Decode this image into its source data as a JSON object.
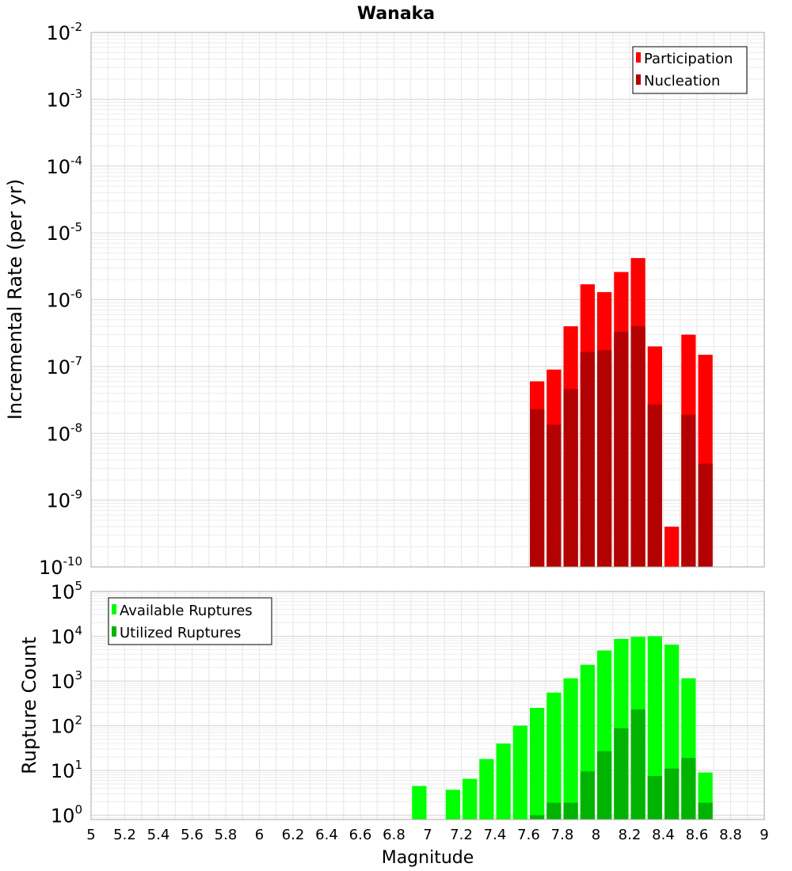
{
  "chart_data": [
    {
      "type": "bar",
      "title": "Wanaka",
      "ylabel": "Incremental Rate (per yr)",
      "xlabel": "",
      "xlim": [
        5,
        9
      ],
      "yscale": "log",
      "ylim": [
        1e-10,
        0.01
      ],
      "y_ticks": [
        {
          "base": "10",
          "exp": "-10"
        },
        {
          "base": "10",
          "exp": "-9"
        },
        {
          "base": "10",
          "exp": "-8"
        },
        {
          "base": "10",
          "exp": "-7"
        },
        {
          "base": "10",
          "exp": "-6"
        },
        {
          "base": "10",
          "exp": "-5"
        },
        {
          "base": "10",
          "exp": "-4"
        },
        {
          "base": "10",
          "exp": "-3"
        },
        {
          "base": "10",
          "exp": "-2"
        }
      ],
      "grid": true,
      "legend_position": "top-right",
      "bin_width": 0.1,
      "series": [
        {
          "name": "Participation",
          "color": "#ff0000",
          "x": [
            7.65,
            7.75,
            7.85,
            7.95,
            8.05,
            8.15,
            8.25,
            8.35,
            8.45,
            8.55,
            8.65
          ],
          "values": [
            6e-08,
            9e-08,
            4e-07,
            1.7e-06,
            1.3e-06,
            2.6e-06,
            4.2e-06,
            2e-07,
            4e-10,
            3e-07,
            1.5e-07
          ]
        },
        {
          "name": "Nucleation",
          "color": "#b30000",
          "x": [
            7.65,
            7.75,
            7.85,
            7.95,
            8.05,
            8.15,
            8.25,
            8.35,
            8.45,
            8.55,
            8.65
          ],
          "values": [
            2.3e-08,
            1.35e-08,
            4.6e-08,
            1.65e-07,
            1.75e-07,
            3.3e-07,
            4e-07,
            2.7e-08,
            1e-10,
            1.9e-08,
            3.5e-09
          ]
        }
      ]
    },
    {
      "type": "bar",
      "title": "",
      "ylabel": "Rupture Count",
      "xlabel": "Magnitude",
      "xlim": [
        5,
        9
      ],
      "yscale": "log",
      "ylim": [
        0.8,
        100000
      ],
      "y_ticks": [
        {
          "base": "10",
          "exp": "0"
        },
        {
          "base": "10",
          "exp": "1"
        },
        {
          "base": "10",
          "exp": "2"
        },
        {
          "base": "10",
          "exp": "3"
        },
        {
          "base": "10",
          "exp": "4"
        },
        {
          "base": "10",
          "exp": "5"
        }
      ],
      "x_ticks": [
        "5",
        "5.2",
        "5.4",
        "5.6",
        "5.8",
        "6",
        "6.2",
        "6.4",
        "6.6",
        "6.8",
        "7",
        "7.2",
        "7.4",
        "7.6",
        "7.8",
        "8",
        "8.2",
        "8.4",
        "8.6",
        "8.8",
        "9"
      ],
      "grid": true,
      "legend_position": "top-left",
      "bin_width": 0.1,
      "series": [
        {
          "name": "Available Ruptures",
          "color": "#00ff00",
          "x": [
            6.95,
            7.15,
            7.25,
            7.35,
            7.45,
            7.55,
            7.65,
            7.75,
            7.85,
            7.95,
            8.05,
            8.15,
            8.25,
            8.35,
            8.45,
            8.55,
            8.65
          ],
          "values": [
            4.5,
            3.7,
            6.5,
            18,
            40,
            100,
            250,
            550,
            1150,
            2300,
            4800,
            8700,
            9700,
            10000,
            6500,
            1150,
            9
          ]
        },
        {
          "name": "Utilized Ruptures",
          "color": "#00b300",
          "x": [
            7.65,
            7.75,
            7.85,
            7.95,
            8.05,
            8.15,
            8.25,
            8.35,
            8.45,
            8.55,
            8.65
          ],
          "values": [
            1,
            1.9,
            1.9,
            9.5,
            27,
            88,
            230,
            7.5,
            11,
            19,
            1.9
          ]
        }
      ]
    }
  ]
}
